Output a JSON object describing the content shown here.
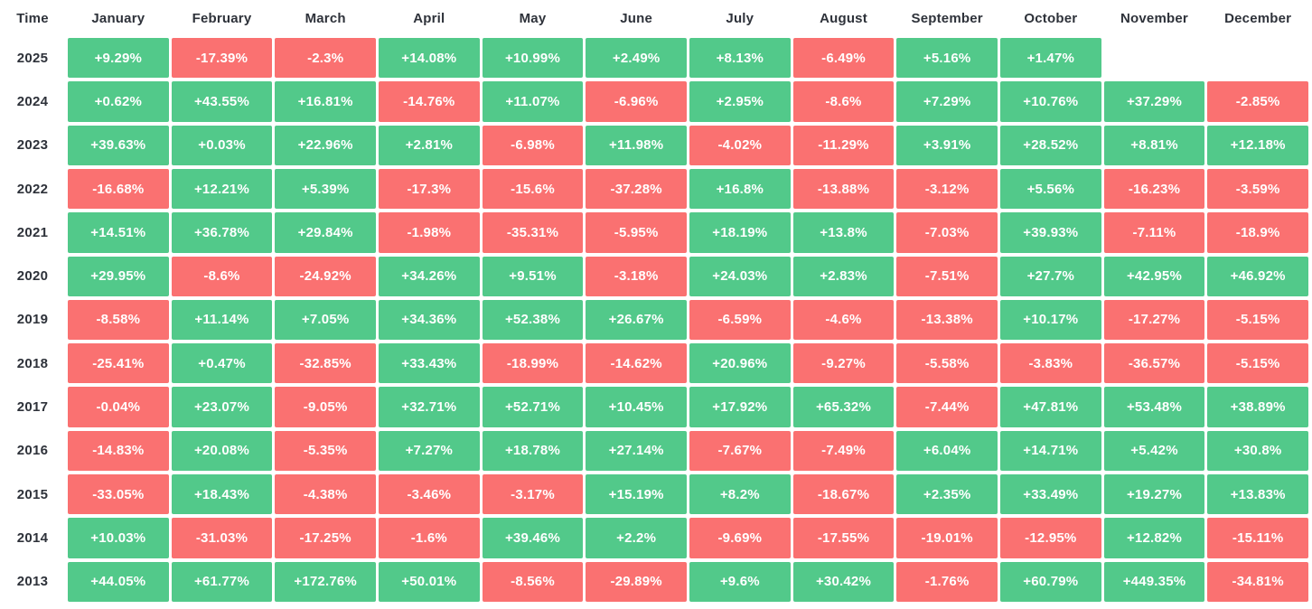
{
  "colors": {
    "positive_cell": "#52c98a",
    "negative_cell": "#fa7171",
    "cell_text": "#ffffff",
    "header_text": "#2e323a",
    "background": "#ffffff"
  },
  "chart_data": {
    "type": "heatmap",
    "title": "",
    "value_format": "signed percent",
    "legend_position": "none",
    "grid": "white gaps between cells",
    "columns": [
      "Time",
      "January",
      "February",
      "March",
      "April",
      "May",
      "June",
      "July",
      "August",
      "September",
      "October",
      "November",
      "December"
    ],
    "rows": [
      {
        "year": "2025",
        "values": [
          "+9.29%",
          "-17.39%",
          "-2.3%",
          "+14.08%",
          "+10.99%",
          "+2.49%",
          "+8.13%",
          "-6.49%",
          "+5.16%",
          "+1.47%",
          null,
          null
        ]
      },
      {
        "year": "2024",
        "values": [
          "+0.62%",
          "+43.55%",
          "+16.81%",
          "-14.76%",
          "+11.07%",
          "-6.96%",
          "+2.95%",
          "-8.6%",
          "+7.29%",
          "+10.76%",
          "+37.29%",
          "-2.85%"
        ]
      },
      {
        "year": "2023",
        "values": [
          "+39.63%",
          "+0.03%",
          "+22.96%",
          "+2.81%",
          "-6.98%",
          "+11.98%",
          "-4.02%",
          "-11.29%",
          "+3.91%",
          "+28.52%",
          "+8.81%",
          "+12.18%"
        ]
      },
      {
        "year": "2022",
        "values": [
          "-16.68%",
          "+12.21%",
          "+5.39%",
          "-17.3%",
          "-15.6%",
          "-37.28%",
          "+16.8%",
          "-13.88%",
          "-3.12%",
          "+5.56%",
          "-16.23%",
          "-3.59%"
        ]
      },
      {
        "year": "2021",
        "values": [
          "+14.51%",
          "+36.78%",
          "+29.84%",
          "-1.98%",
          "-35.31%",
          "-5.95%",
          "+18.19%",
          "+13.8%",
          "-7.03%",
          "+39.93%",
          "-7.11%",
          "-18.9%"
        ]
      },
      {
        "year": "2020",
        "values": [
          "+29.95%",
          "-8.6%",
          "-24.92%",
          "+34.26%",
          "+9.51%",
          "-3.18%",
          "+24.03%",
          "+2.83%",
          "-7.51%",
          "+27.7%",
          "+42.95%",
          "+46.92%"
        ]
      },
      {
        "year": "2019",
        "values": [
          "-8.58%",
          "+11.14%",
          "+7.05%",
          "+34.36%",
          "+52.38%",
          "+26.67%",
          "-6.59%",
          "-4.6%",
          "-13.38%",
          "+10.17%",
          "-17.27%",
          "-5.15%"
        ]
      },
      {
        "year": "2018",
        "values": [
          "-25.41%",
          "+0.47%",
          "-32.85%",
          "+33.43%",
          "-18.99%",
          "-14.62%",
          "+20.96%",
          "-9.27%",
          "-5.58%",
          "-3.83%",
          "-36.57%",
          "-5.15%"
        ]
      },
      {
        "year": "2017",
        "values": [
          "-0.04%",
          "+23.07%",
          "-9.05%",
          "+32.71%",
          "+52.71%",
          "+10.45%",
          "+17.92%",
          "+65.32%",
          "-7.44%",
          "+47.81%",
          "+53.48%",
          "+38.89%"
        ]
      },
      {
        "year": "2016",
        "values": [
          "-14.83%",
          "+20.08%",
          "-5.35%",
          "+7.27%",
          "+18.78%",
          "+27.14%",
          "-7.67%",
          "-7.49%",
          "+6.04%",
          "+14.71%",
          "+5.42%",
          "+30.8%"
        ]
      },
      {
        "year": "2015",
        "values": [
          "-33.05%",
          "+18.43%",
          "-4.38%",
          "-3.46%",
          "-3.17%",
          "+15.19%",
          "+8.2%",
          "-18.67%",
          "+2.35%",
          "+33.49%",
          "+19.27%",
          "+13.83%"
        ]
      },
      {
        "year": "2014",
        "values": [
          "+10.03%",
          "-31.03%",
          "-17.25%",
          "-1.6%",
          "+39.46%",
          "+2.2%",
          "-9.69%",
          "-17.55%",
          "-19.01%",
          "-12.95%",
          "+12.82%",
          "-15.11%"
        ]
      },
      {
        "year": "2013",
        "values": [
          "+44.05%",
          "+61.77%",
          "+172.76%",
          "+50.01%",
          "-8.56%",
          "-29.89%",
          "+9.6%",
          "+30.42%",
          "-1.76%",
          "+60.79%",
          "+449.35%",
          "-34.81%"
        ]
      }
    ]
  }
}
